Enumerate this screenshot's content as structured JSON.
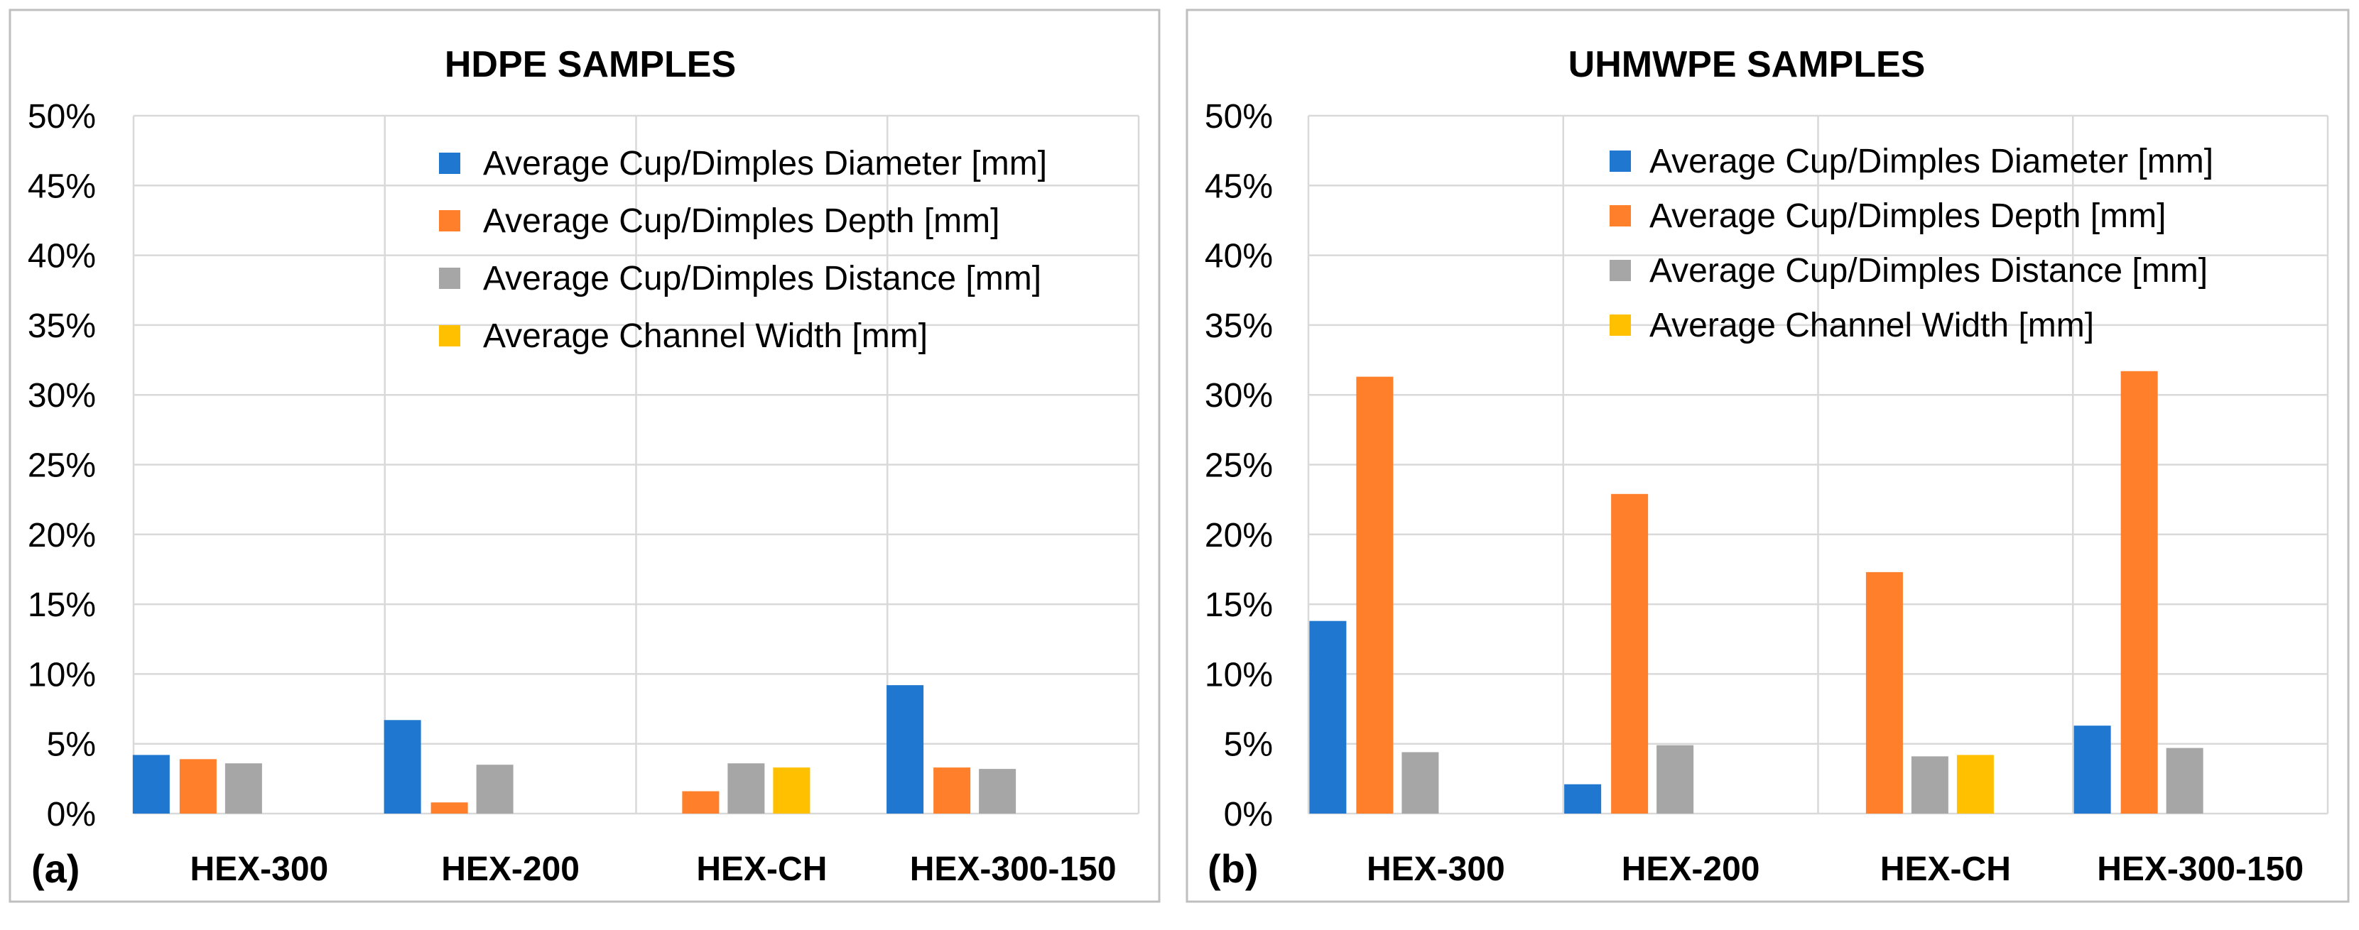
{
  "colors": {
    "diameter": "#1f77d0",
    "depth": "#ff7f2a",
    "distance": "#a6a6a6",
    "channel": "#ffc000",
    "grid": "#d9d9d9",
    "frame": "#bfbfbf"
  },
  "chart_data": [
    {
      "type": "bar",
      "panel_label": "(a)",
      "title": "HDPE SAMPLES",
      "categories": [
        "HEX-300",
        "HEX-200",
        "HEX-CH",
        "HEX-300-150"
      ],
      "ylim": [
        0,
        50
      ],
      "ytick_labels": [
        "0%",
        "5%",
        "10%",
        "15%",
        "20%",
        "25%",
        "30%",
        "35%",
        "40%",
        "45%",
        "50%"
      ],
      "grid": true,
      "legend_position": "top-right",
      "series": [
        {
          "name": "Average Cup/Dimples Diameter [mm]",
          "color_key": "diameter",
          "values": [
            4.2,
            6.7,
            0,
            9.2
          ]
        },
        {
          "name": "Average Cup/Dimples Depth [mm]",
          "color_key": "depth",
          "values": [
            3.9,
            0.8,
            1.6,
            3.3
          ]
        },
        {
          "name": "Average  Cup/Dimples Distance [mm]",
          "color_key": "distance",
          "values": [
            3.6,
            3.5,
            3.6,
            3.2
          ]
        },
        {
          "name": "Average Channel Width [mm]",
          "color_key": "channel",
          "values": [
            0,
            0,
            3.3,
            0
          ]
        }
      ]
    },
    {
      "type": "bar",
      "panel_label": "(b)",
      "title": "UHMWPE SAMPLES",
      "categories": [
        "HEX-300",
        "HEX-200",
        "HEX-CH",
        "HEX-300-150"
      ],
      "ylim": [
        0,
        50
      ],
      "ytick_labels": [
        "0%",
        "5%",
        "10%",
        "15%",
        "20%",
        "25%",
        "30%",
        "35%",
        "40%",
        "45%",
        "50%"
      ],
      "grid": true,
      "legend_position": "top-right",
      "series": [
        {
          "name": "Average Cup/Dimples Diameter [mm]",
          "color_key": "diameter",
          "values": [
            13.8,
            2.1,
            0,
            6.3
          ]
        },
        {
          "name": "Average Cup/Dimples Depth [mm]",
          "color_key": "depth",
          "values": [
            31.3,
            22.9,
            17.3,
            31.7
          ]
        },
        {
          "name": "Average  Cup/Dimples Distance [mm]",
          "color_key": "distance",
          "values": [
            4.4,
            4.9,
            4.1,
            4.7
          ]
        },
        {
          "name": "Average Channel Width [mm]",
          "color_key": "channel",
          "values": [
            0,
            0,
            4.2,
            0
          ]
        }
      ]
    }
  ]
}
